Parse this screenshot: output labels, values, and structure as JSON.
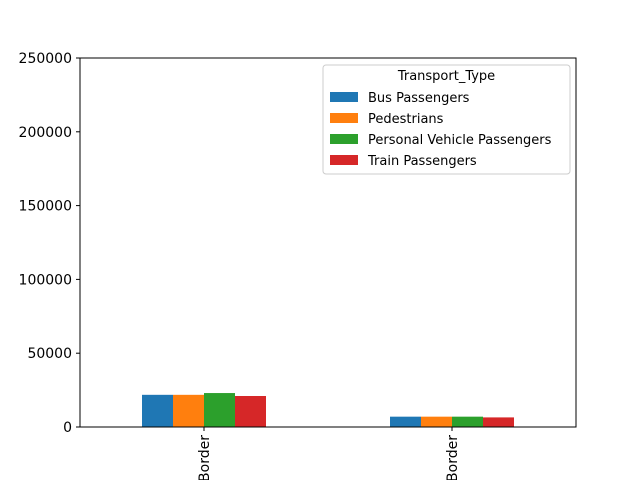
{
  "chart_data": {
    "type": "bar",
    "categories": [
      "Border",
      "Border"
    ],
    "series": [
      {
        "name": "Bus Passengers",
        "values": [
          21800,
          7000
        ],
        "color": "#1f77b4"
      },
      {
        "name": "Pedestrians",
        "values": [
          21800,
          7000
        ],
        "color": "#ff7f0e"
      },
      {
        "name": "Personal Vehicle Passengers",
        "values": [
          23000,
          7000
        ],
        "color": "#2ca02c"
      },
      {
        "name": "Train Passengers",
        "values": [
          21000,
          6500
        ],
        "color": "#d62728"
      }
    ],
    "legend_title": "Transport_Type",
    "legend_position": "top-right",
    "ylim": [
      0,
      250000
    ],
    "yticks": [
      0,
      50000,
      100000,
      150000,
      200000,
      250000
    ],
    "grid": false
  }
}
